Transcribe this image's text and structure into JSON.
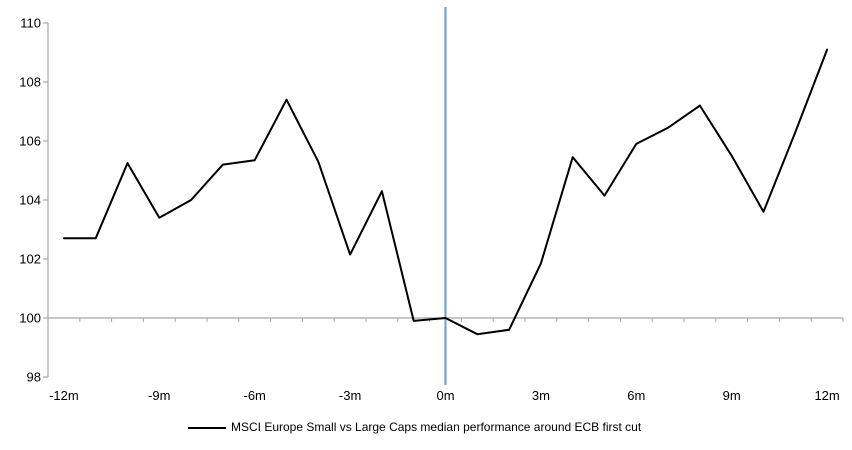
{
  "chart_data": {
    "type": "line",
    "title": "",
    "xlabel": "",
    "ylabel": "",
    "ylim": [
      98,
      110
    ],
    "y_ticks": [
      98,
      100,
      102,
      104,
      106,
      108,
      110
    ],
    "x_ticks": [
      {
        "m": -12,
        "label": "-12m"
      },
      {
        "m": -9,
        "label": "-9m"
      },
      {
        "m": -6,
        "label": "-6m"
      },
      {
        "m": -3,
        "label": "-3m"
      },
      {
        "m": 0,
        "label": "0m"
      },
      {
        "m": 3,
        "label": "3m"
      },
      {
        "m": 6,
        "label": "6m"
      },
      {
        "m": 9,
        "label": "9m"
      },
      {
        "m": 12,
        "label": "12m"
      }
    ],
    "x_range_months": [
      -12,
      12
    ],
    "grid": "off",
    "legend_position": "bottom",
    "baseline_value": 100,
    "axis_color": "#a6a6a6",
    "event_line": {
      "x_month": 0,
      "color": "#74a3cd"
    },
    "series": [
      {
        "name": "MSCI Europe Small vs Large Caps median performance around ECB first cut",
        "color": "#000000",
        "x": [
          -12,
          -11,
          -10,
          -9,
          -8,
          -7,
          -6,
          -5,
          -4,
          -3,
          -2,
          -1,
          0,
          1,
          2,
          3,
          4,
          5,
          6,
          7,
          8,
          9,
          10,
          11,
          12
        ],
        "values": [
          102.7,
          102.7,
          105.25,
          103.4,
          104.0,
          105.2,
          105.35,
          107.4,
          105.3,
          102.15,
          104.3,
          99.9,
          100.0,
          99.45,
          99.6,
          101.85,
          105.45,
          104.15,
          105.9,
          106.45,
          107.2,
          105.5,
          103.6,
          106.3,
          109.1
        ]
      }
    ]
  }
}
